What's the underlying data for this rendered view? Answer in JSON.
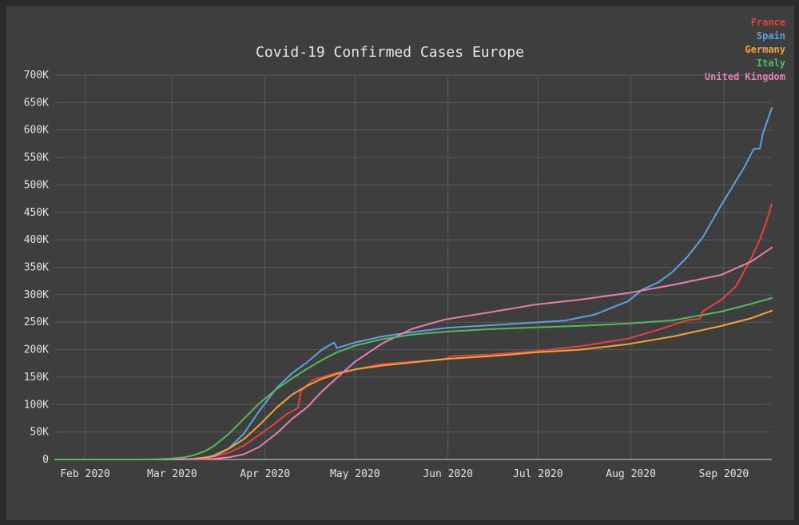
{
  "chart_data": {
    "type": "line",
    "title": "Covid-19 Confirmed Cases Europe",
    "xlabel": "",
    "ylabel": "",
    "x_ticks": [
      "Feb 2020",
      "Mar 2020",
      "Apr 2020",
      "May 2020",
      "Jun 2020",
      "Jul 2020",
      "Aug 2020",
      "Sep 2020"
    ],
    "y_ticks": [
      "0",
      "50K",
      "100K",
      "150K",
      "200K",
      "250K",
      "300K",
      "350K",
      "400K",
      "450K",
      "500K",
      "550K",
      "600K",
      "650K",
      "700K"
    ],
    "x_range": [
      "2020-01-22",
      "2020-09-17"
    ],
    "ylim": [
      0,
      700000
    ],
    "grid": true,
    "legend_position": "top-right",
    "series": [
      {
        "name": "France",
        "color": "#e8413b",
        "points": [
          [
            "2020-01-22",
            0
          ],
          [
            "2020-02-15",
            0
          ],
          [
            "2020-03-01",
            130
          ],
          [
            "2020-03-08",
            1200
          ],
          [
            "2020-03-15",
            5400
          ],
          [
            "2020-03-20",
            12600
          ],
          [
            "2020-03-25",
            25200
          ],
          [
            "2020-03-30",
            44500
          ],
          [
            "2020-04-04",
            64300
          ],
          [
            "2020-04-08",
            82000
          ],
          [
            "2020-04-11",
            90700
          ],
          [
            "2020-04-12",
            94000
          ],
          [
            "2020-04-13",
            125000
          ],
          [
            "2020-04-17",
            145000
          ],
          [
            "2020-04-25",
            158000
          ],
          [
            "2020-05-01",
            164000
          ],
          [
            "2020-05-10",
            174000
          ],
          [
            "2020-05-31",
            182000
          ],
          [
            "2020-06-02",
            188000
          ],
          [
            "2020-06-15",
            191000
          ],
          [
            "2020-06-30",
            197000
          ],
          [
            "2020-07-15",
            206000
          ],
          [
            "2020-07-31",
            220000
          ],
          [
            "2020-08-10",
            236000
          ],
          [
            "2020-08-20",
            254000
          ],
          [
            "2020-08-24",
            256000
          ],
          [
            "2020-08-25",
            270000
          ],
          [
            "2020-08-31",
            290000
          ],
          [
            "2020-09-05",
            315000
          ],
          [
            "2020-09-10",
            365000
          ],
          [
            "2020-09-13",
            400000
          ],
          [
            "2020-09-15",
            430000
          ],
          [
            "2020-09-17",
            465000
          ]
        ]
      },
      {
        "name": "Spain",
        "color": "#5fa0dd",
        "points": [
          [
            "2020-01-22",
            0
          ],
          [
            "2020-02-20",
            0
          ],
          [
            "2020-03-01",
            80
          ],
          [
            "2020-03-08",
            670
          ],
          [
            "2020-03-12",
            3000
          ],
          [
            "2020-03-15",
            7800
          ],
          [
            "2020-03-20",
            20400
          ],
          [
            "2020-03-25",
            47600
          ],
          [
            "2020-03-30",
            87900
          ],
          [
            "2020-04-01",
            102000
          ],
          [
            "2020-04-05",
            131000
          ],
          [
            "2020-04-10",
            157000
          ],
          [
            "2020-04-15",
            177000
          ],
          [
            "2020-04-20",
            200000
          ],
          [
            "2020-04-24",
            213000
          ],
          [
            "2020-04-25",
            203000
          ],
          [
            "2020-05-01",
            213000
          ],
          [
            "2020-05-10",
            224000
          ],
          [
            "2020-05-20",
            232000
          ],
          [
            "2020-06-01",
            240000
          ],
          [
            "2020-06-20",
            246000
          ],
          [
            "2020-07-10",
            253000
          ],
          [
            "2020-07-20",
            264000
          ],
          [
            "2020-07-31",
            288000
          ],
          [
            "2020-08-05",
            310000
          ],
          [
            "2020-08-10",
            322000
          ],
          [
            "2020-08-15",
            342000
          ],
          [
            "2020-08-20",
            370000
          ],
          [
            "2020-08-25",
            405000
          ],
          [
            "2020-08-31",
            462000
          ],
          [
            "2020-09-04",
            498000
          ],
          [
            "2020-09-08",
            534000
          ],
          [
            "2020-09-11",
            566000
          ],
          [
            "2020-09-13",
            566000
          ],
          [
            "2020-09-14",
            593000
          ],
          [
            "2020-09-17",
            640000
          ]
        ]
      },
      {
        "name": "Germany",
        "color": "#f3a33b",
        "points": [
          [
            "2020-01-22",
            0
          ],
          [
            "2020-02-20",
            0
          ],
          [
            "2020-03-01",
            130
          ],
          [
            "2020-03-08",
            1000
          ],
          [
            "2020-03-15",
            5800
          ],
          [
            "2020-03-20",
            19800
          ],
          [
            "2020-03-25",
            37300
          ],
          [
            "2020-03-30",
            62100
          ],
          [
            "2020-04-05",
            95000
          ],
          [
            "2020-04-10",
            118000
          ],
          [
            "2020-04-15",
            134000
          ],
          [
            "2020-04-20",
            147000
          ],
          [
            "2020-04-25",
            156000
          ],
          [
            "2020-05-01",
            164000
          ],
          [
            "2020-05-10",
            171000
          ],
          [
            "2020-05-31",
            183000
          ],
          [
            "2020-06-15",
            188000
          ],
          [
            "2020-06-30",
            195000
          ],
          [
            "2020-07-15",
            200000
          ],
          [
            "2020-07-31",
            210000
          ],
          [
            "2020-08-15",
            224000
          ],
          [
            "2020-08-31",
            243000
          ],
          [
            "2020-09-10",
            257000
          ],
          [
            "2020-09-17",
            271000
          ]
        ]
      },
      {
        "name": "Italy",
        "color": "#56b95b",
        "points": [
          [
            "2020-01-22",
            0
          ],
          [
            "2020-02-20",
            0
          ],
          [
            "2020-02-25",
            300
          ],
          [
            "2020-03-01",
            1700
          ],
          [
            "2020-03-05",
            3900
          ],
          [
            "2020-03-08",
            7400
          ],
          [
            "2020-03-12",
            15100
          ],
          [
            "2020-03-15",
            24700
          ],
          [
            "2020-03-20",
            47000
          ],
          [
            "2020-03-25",
            74400
          ],
          [
            "2020-03-30",
            101700
          ],
          [
            "2020-04-05",
            128900
          ],
          [
            "2020-04-10",
            147600
          ],
          [
            "2020-04-15",
            165200
          ],
          [
            "2020-04-20",
            181200
          ],
          [
            "2020-04-25",
            195300
          ],
          [
            "2020-05-01",
            207400
          ],
          [
            "2020-05-10",
            219000
          ],
          [
            "2020-05-20",
            227400
          ],
          [
            "2020-05-31",
            232700
          ],
          [
            "2020-06-15",
            237300
          ],
          [
            "2020-06-30",
            240600
          ],
          [
            "2020-07-15",
            243500
          ],
          [
            "2020-07-31",
            247500
          ],
          [
            "2020-08-15",
            253400
          ],
          [
            "2020-08-31",
            269200
          ],
          [
            "2020-09-10",
            283200
          ],
          [
            "2020-09-17",
            294000
          ]
        ]
      },
      {
        "name": "United Kingdom",
        "color": "#e97eb4",
        "points": [
          [
            "2020-01-22",
            0
          ],
          [
            "2020-02-20",
            0
          ],
          [
            "2020-03-01",
            40
          ],
          [
            "2020-03-08",
            270
          ],
          [
            "2020-03-15",
            1400
          ],
          [
            "2020-03-20",
            4000
          ],
          [
            "2020-03-25",
            9600
          ],
          [
            "2020-03-30",
            22500
          ],
          [
            "2020-04-05",
            48000
          ],
          [
            "2020-04-10",
            74000
          ],
          [
            "2020-04-15",
            95000
          ],
          [
            "2020-04-20",
            124000
          ],
          [
            "2020-04-25",
            149000
          ],
          [
            "2020-05-01",
            178000
          ],
          [
            "2020-05-10",
            211000
          ],
          [
            "2020-05-20",
            238000
          ],
          [
            "2020-05-31",
            255000
          ],
          [
            "2020-06-15",
            268000
          ],
          [
            "2020-06-30",
            282000
          ],
          [
            "2020-07-15",
            291000
          ],
          [
            "2020-07-31",
            303000
          ],
          [
            "2020-08-15",
            318000
          ],
          [
            "2020-08-31",
            336000
          ],
          [
            "2020-09-10",
            360000
          ],
          [
            "2020-09-17",
            386000
          ]
        ]
      }
    ]
  }
}
